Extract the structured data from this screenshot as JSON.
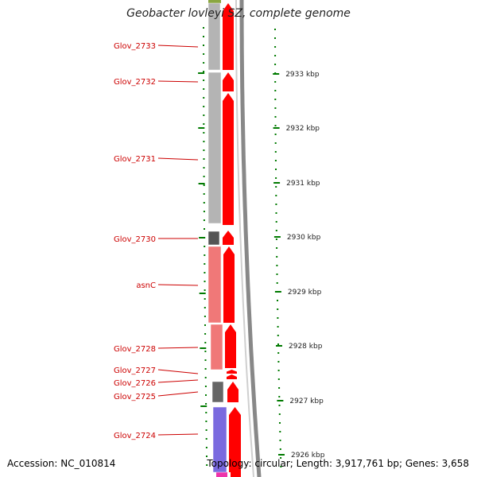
{
  "title": "Geobacter lovleyi SZ, complete genome",
  "accession": "Accession: NC_010814",
  "summary": "Topology: circular; Length: 3,917,761 bp; Genes: 3,658",
  "scale_labels": [
    "2933 kbp",
    "2932 kbp",
    "2931 kbp",
    "2930 kbp",
    "2929 kbp",
    "2928 kbp",
    "2927 kbp",
    "2926 kbp"
  ],
  "genes": [
    {
      "name": "Glov_2733",
      "color": "#b4b4b4"
    },
    {
      "name": "Glov_2732",
      "color": "#b4b4b4"
    },
    {
      "name": "Glov_2731",
      "color": "#b4b4b4"
    },
    {
      "name": "Glov_2730",
      "color": "#555555"
    },
    {
      "name": "asnC",
      "color": "#f07878"
    },
    {
      "name": "Glov_2728",
      "color": "#f07878"
    },
    {
      "name": "Glov_2727",
      "color": "#ffffff"
    },
    {
      "name": "Glov_2726",
      "color": "#ffffff"
    },
    {
      "name": "Glov_2725",
      "color": "#666666"
    },
    {
      "name": "Glov_2724",
      "color": "#7a6adf"
    }
  ],
  "colors": {
    "label": "#cc0000",
    "strand_arrow": "#ff0000",
    "tick": "#007a00",
    "backbone": "#888888",
    "top_band": "#8aa640",
    "bottom_band": "#ee33aa"
  }
}
